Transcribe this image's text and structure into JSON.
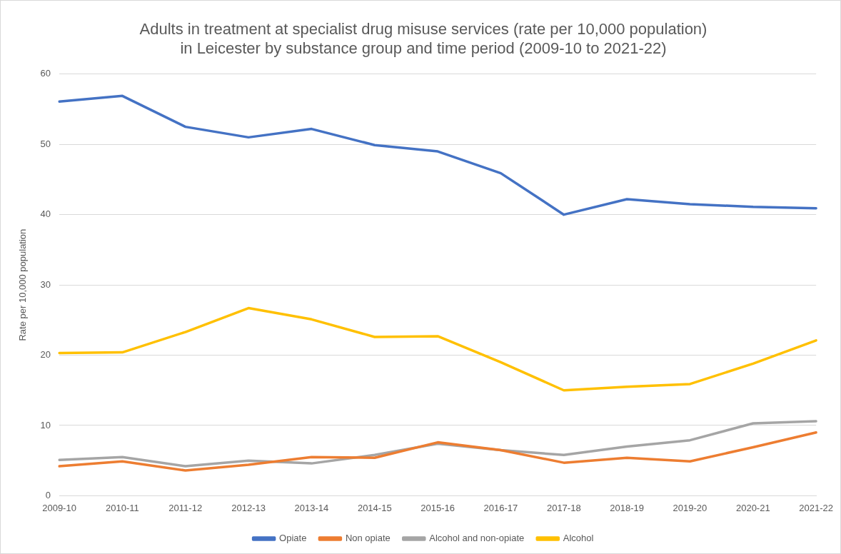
{
  "chart_data": {
    "type": "line",
    "title": "Adults in treatment at specialist drug misuse services (rate per 10,000 population)\nin Leicester by substance group and time period (2009-10 to 2021-22)",
    "ylabel": "Rate per 10,000 population",
    "categories": [
      "2009-10",
      "2010-11",
      "2011-12",
      "2012-13",
      "2013-14",
      "2014-15",
      "2015-16",
      "2016-17",
      "2017-18",
      "2018-19",
      "2019-20",
      "2020-21",
      "2021-22"
    ],
    "series": [
      {
        "name": "Opiate",
        "color": "#4472c4",
        "values": [
          56.1,
          56.9,
          52.5,
          51.0,
          52.2,
          49.9,
          49.0,
          45.9,
          40.0,
          42.2,
          41.5,
          41.1,
          40.9
        ]
      },
      {
        "name": "Non opiate",
        "color": "#ed7d31",
        "values": [
          4.2,
          4.9,
          3.6,
          4.4,
          5.5,
          5.4,
          7.6,
          6.5,
          4.7,
          5.4,
          4.9,
          6.9,
          9.0
        ]
      },
      {
        "name": "Alcohol and non-opiate",
        "color": "#a5a5a5",
        "values": [
          5.1,
          5.5,
          4.2,
          5.0,
          4.6,
          5.8,
          7.4,
          6.5,
          5.8,
          7.0,
          7.9,
          10.3,
          10.6
        ]
      },
      {
        "name": "Alcohol",
        "color": "#ffc000",
        "values": [
          20.3,
          20.4,
          23.3,
          26.7,
          25.1,
          22.6,
          22.7,
          19.0,
          15.0,
          15.5,
          15.9,
          18.8,
          22.1
        ]
      }
    ],
    "ylim": [
      0,
      60
    ],
    "yticks": [
      0,
      10,
      20,
      30,
      40,
      50,
      60
    ],
    "grid": "y",
    "legend": "bottom",
    "marker": "none",
    "line_style": "solid"
  }
}
